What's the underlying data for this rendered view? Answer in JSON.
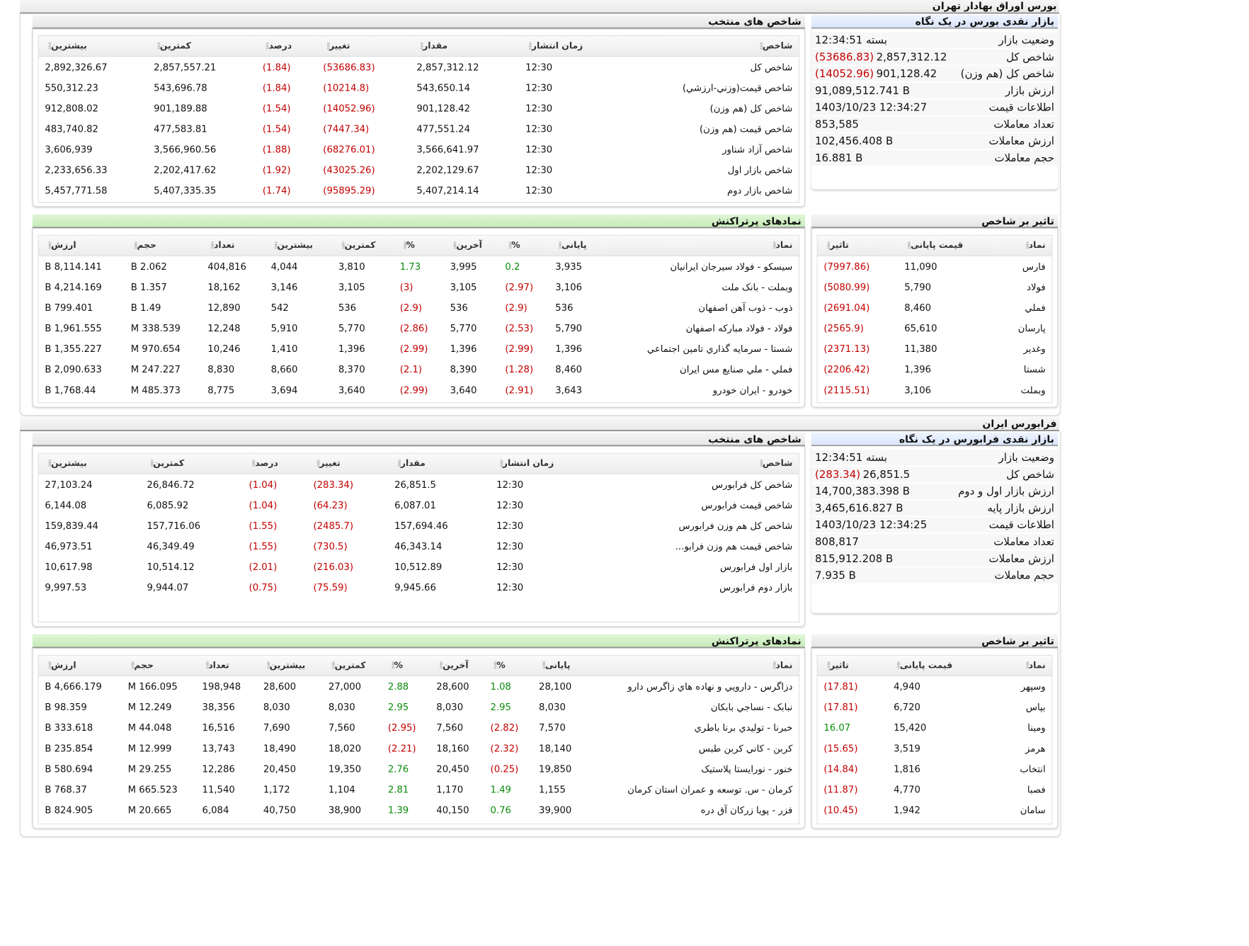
{
  "tehran": {
    "title": "بورس اوراق بهادار تهران",
    "glance": {
      "title": "بازار نقدی بورس در یک نگاه",
      "rows": [
        {
          "k": "وضعیت بازار",
          "v": "بسته 12:34:51",
          "neg": ""
        },
        {
          "k": "شاخص کل",
          "v": "2,857,312.12",
          "neg": "(53686.83)"
        },
        {
          "k": "شاخص کل (هم وزن)",
          "v": "901,128.42",
          "neg": "(14052.96)"
        },
        {
          "k": "ارزش بازار",
          "v": "91,089,512.741 B",
          "neg": ""
        },
        {
          "k": "اطلاعات قیمت",
          "v": "1403/10/23 12:34:27",
          "neg": ""
        },
        {
          "k": "تعداد معاملات",
          "v": "853,585",
          "neg": ""
        },
        {
          "k": "ارزش معاملات",
          "v": "102,456.408 B",
          "neg": ""
        },
        {
          "k": "حجم معاملات",
          "v": "16.881 B",
          "neg": ""
        }
      ]
    },
    "indices": {
      "title": "شاخص های منتخب",
      "headers": [
        "شاخص",
        "زمان انتشار",
        "مقدار",
        "تغییر",
        "درصد",
        "کمترین",
        "بیشترین"
      ],
      "rows": [
        [
          "شاخص کل",
          "12:30",
          "2,857,312.12",
          "(53686.83)",
          "(1.84)",
          "2,857,557.21",
          "2,892,326.67"
        ],
        [
          "شاخص قیمت(وزني-ارزشي)",
          "12:30",
          "543,650.14",
          "(10214.8)",
          "(1.84)",
          "543,696.78",
          "550,312.23"
        ],
        [
          "شاخص کل (هم وزن)",
          "12:30",
          "901,128.42",
          "(14052.96)",
          "(1.54)",
          "901,189.88",
          "912,808.02"
        ],
        [
          "شاخص قیمت (هم وزن)",
          "12:30",
          "477,551.24",
          "(7447.34)",
          "(1.54)",
          "477,583.81",
          "483,740.82"
        ],
        [
          "شاخص آزاد شناور",
          "12:30",
          "3,566,641.97",
          "(68276.01)",
          "(1.88)",
          "3,566,960.56",
          "3,606,939"
        ],
        [
          "شاخص بازار اول",
          "12:30",
          "2,202,129.67",
          "(43025.26)",
          "(1.92)",
          "2,202,417.62",
          "2,233,656.33"
        ],
        [
          "شاخص بازار دوم",
          "12:30",
          "5,407,214.14",
          "(95895.29)",
          "(1.74)",
          "5,407,335.35",
          "5,457,771.58"
        ]
      ]
    },
    "impact": {
      "title": "تاثیر بر شاخص",
      "headers": [
        "نماد",
        "قیمت پایانی",
        "تاثیر"
      ],
      "rows": [
        [
          "فارس",
          "11,090",
          "(7997.86)"
        ],
        [
          "فولاد",
          "5,790",
          "(5080.99)"
        ],
        [
          "فملي",
          "8,460",
          "(2691.04)"
        ],
        [
          "پارسان",
          "65,610",
          "(2565.9)"
        ],
        [
          "وغدير",
          "11,380",
          "(2371.13)"
        ],
        [
          "شستا",
          "1,396",
          "(2206.42)"
        ],
        [
          "وبملت",
          "3,106",
          "(2115.51)"
        ]
      ]
    },
    "symbols": {
      "title": "نمادهای پرتراکنش",
      "headers": [
        "نماد",
        "پایانی",
        "%",
        "آخرین",
        "%",
        "کمترین",
        "بیشترین",
        "تعداد",
        "حجم",
        "ارزش"
      ],
      "rows": [
        [
          "سيسکو - فولاد سيرجان ايرانيان",
          "3,935",
          "0.2",
          "3,995",
          "1.73",
          "3,810",
          "4,044",
          "404,816",
          "2.062 B",
          "8,114.141 B"
        ],
        [
          "وبملت - بانک ملت",
          "3,106",
          "(2.97)",
          "3,105",
          "(3)",
          "3,105",
          "3,146",
          "18,162",
          "1.357 B",
          "4,214.169 B"
        ],
        [
          "ذوب - ذوب آهن اصفهان",
          "536",
          "(2.9)",
          "536",
          "(2.9)",
          "536",
          "542",
          "12,890",
          "1.49 B",
          "799.401 B"
        ],
        [
          "فولاد - فولاد مبارکه اصفهان",
          "5,790",
          "(2.53)",
          "5,770",
          "(2.86)",
          "5,770",
          "5,910",
          "12,248",
          "338.539 M",
          "1,961.555 B"
        ],
        [
          "شستا - سرمايه گذاري تامين اجتماعي",
          "1,396",
          "(2.99)",
          "1,396",
          "(2.99)",
          "1,396",
          "1,410",
          "10,246",
          "970.654 M",
          "1,355.227 B"
        ],
        [
          "فملي - ملي صنايع مس ايران",
          "8,460",
          "(1.28)",
          "8,390",
          "(2.1)",
          "8,370",
          "8,660",
          "8,830",
          "247.227 M",
          "2,090.633 B"
        ],
        [
          "خودرو - ايران خودرو",
          "3,643",
          "(2.91)",
          "3,640",
          "(2.99)",
          "3,640",
          "3,694",
          "8,775",
          "485.373 M",
          "1,768.44 B"
        ]
      ]
    }
  },
  "farabourse": {
    "title": "فرابورس ایران",
    "glance": {
      "title": "بازار نقدی فرابورس در یک نگاه",
      "rows": [
        {
          "k": "وضعیت بازار",
          "v": "بسته 12:34:51",
          "neg": ""
        },
        {
          "k": "شاخص کل",
          "v": "26,851.5",
          "neg": "(283.34)"
        },
        {
          "k": "ارزش بازار اول و دوم",
          "v": "14,700,383.398 B",
          "neg": ""
        },
        {
          "k": "ارزش بازار پایه",
          "v": "3,465,616.827 B",
          "neg": ""
        },
        {
          "k": "اطلاعات قیمت",
          "v": "1403/10/23 12:34:25",
          "neg": ""
        },
        {
          "k": "تعداد معاملات",
          "v": "808,817",
          "neg": ""
        },
        {
          "k": "ارزش معاملات",
          "v": "815,912.208 B",
          "neg": ""
        },
        {
          "k": "حجم معاملات",
          "v": "7.935 B",
          "neg": ""
        }
      ]
    },
    "indices": {
      "title": "شاخص های منتخب",
      "headers": [
        "شاخص",
        "زمان انتشار",
        "مقدار",
        "تغییر",
        "درصد",
        "کمترین",
        "بیشترین"
      ],
      "rows": [
        [
          "شاخص کل فرابورس",
          "12:30",
          "26,851.5",
          "(283.34)",
          "(1.04)",
          "26,846.72",
          "27,103.24"
        ],
        [
          "شاخص قیمت فرابورس",
          "12:30",
          "6,087.01",
          "(64.23)",
          "(1.04)",
          "6,085.92",
          "6,144.08"
        ],
        [
          "شاخص کل هم وزن فرابورس",
          "12:30",
          "157,694.46",
          "(2485.7)",
          "(1.55)",
          "157,716.06",
          "159,839.44"
        ],
        [
          "شاخص قیمت هم وزن فرابو...",
          "12:30",
          "46,343.14",
          "(730.5)",
          "(1.55)",
          "46,349.49",
          "46,973.51"
        ],
        [
          "بازار اول فرابورس",
          "12:30",
          "10,512.89",
          "(216.03)",
          "(2.01)",
          "10,514.12",
          "10,617.98"
        ],
        [
          "بازار دوم فرابورس",
          "12:30",
          "9,945.66",
          "(75.59)",
          "(0.75)",
          "9,944.07",
          "9,997.53"
        ]
      ]
    },
    "impact": {
      "title": "تاثیر بر شاخص",
      "headers": [
        "نماد",
        "قیمت پایانی",
        "تاثیر"
      ],
      "rows": [
        [
          "وسپهر",
          "4,940",
          "(17.81)"
        ],
        [
          "بپاس",
          "6,720",
          "(17.81)"
        ],
        [
          "ومينا",
          "15,420",
          "16.07"
        ],
        [
          "هرمز",
          "3,519",
          "(15.65)"
        ],
        [
          "انتخاب",
          "1,816",
          "(14.84)"
        ],
        [
          "فصبا",
          "4,770",
          "(11.87)"
        ],
        [
          "سامان",
          "1,942",
          "(10.45)"
        ]
      ]
    },
    "symbols": {
      "title": "نمادهای پرتراکنش",
      "headers": [
        "نماد",
        "پایانی",
        "%",
        "آخرین",
        "%",
        "کمترین",
        "بیشترین",
        "تعداد",
        "حجم",
        "ارزش"
      ],
      "rows": [
        [
          "دزاگرس - دارويي و نهاده هاي زاگرس دارو",
          "28,100",
          "1.08",
          "28,600",
          "2.88",
          "27,000",
          "28,600",
          "198,948",
          "166.095 M",
          "4,666.179 B"
        ],
        [
          "نبابک - نساجي بابکان",
          "8,030",
          "2.95",
          "8,030",
          "2.95",
          "8,030",
          "8,030",
          "38,356",
          "12.249 M",
          "98.359 B"
        ],
        [
          "خبرنا - توليدي برنا باطري",
          "7,570",
          "(2.82)",
          "7,560",
          "(2.95)",
          "7,560",
          "7,690",
          "16,516",
          "44.048 M",
          "333.618 B"
        ],
        [
          "کربن - کاني کربن طبس",
          "18,140",
          "(2.32)",
          "18,160",
          "(2.21)",
          "18,020",
          "18,490",
          "13,743",
          "12.999 M",
          "235.854 B"
        ],
        [
          "خنور - نورايستا پلاستيک",
          "19,850",
          "(0.25)",
          "20,450",
          "2.76",
          "19,350",
          "20,450",
          "12,286",
          "29.255 M",
          "580.694 B"
        ],
        [
          "کرمان - س. توسعه و عمران استان کرمان",
          "1,155",
          "1.49",
          "1,170",
          "2.81",
          "1,104",
          "1,172",
          "11,540",
          "665.523 M",
          "768.37 B"
        ],
        [
          "فزر - پويا زرکان آق دره",
          "39,900",
          "0.76",
          "40,150",
          "1.39",
          "38,900",
          "40,750",
          "6,084",
          "20.665 M",
          "824.905 B"
        ]
      ]
    }
  }
}
